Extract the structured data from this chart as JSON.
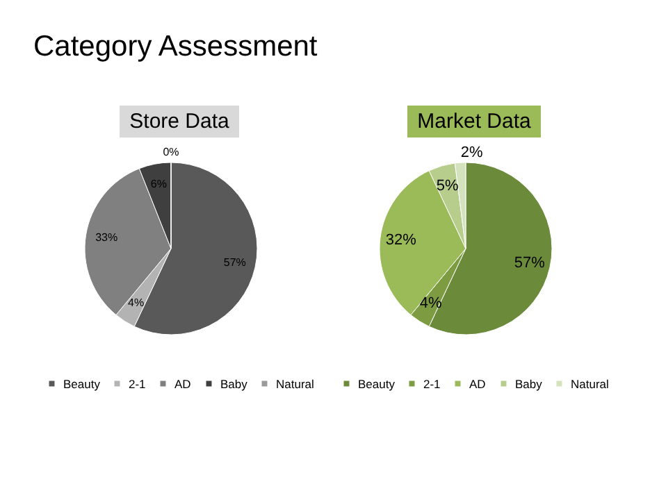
{
  "chart_data": [
    {
      "type": "pie",
      "title": "Store Data",
      "annotations": [
        "Category Assessment"
      ],
      "categories": [
        "Beauty",
        "2-1",
        "AD",
        "Baby",
        "Natural"
      ],
      "values": [
        57,
        4,
        33,
        6,
        0
      ],
      "colors": [
        "#595959",
        "#b3b3b3",
        "#808080",
        "#3f3f3f",
        "#9a9a9a"
      ],
      "value_labels": [
        "57%",
        "4%",
        "33%",
        "6%",
        "0%"
      ],
      "legend": "bottom"
    },
    {
      "type": "pie",
      "title": "Market Data",
      "categories": [
        "Beauty",
        "2-1",
        "AD",
        "Baby",
        "Natural"
      ],
      "values": [
        57,
        4,
        32,
        5,
        2
      ],
      "colors": [
        "#6b8a3a",
        "#7d9c42",
        "#9bbb59",
        "#b7cd8c",
        "#d5e2be"
      ],
      "value_labels": [
        "57%",
        "4%",
        "32%",
        "5%",
        "2%"
      ],
      "legend": "bottom"
    }
  ]
}
